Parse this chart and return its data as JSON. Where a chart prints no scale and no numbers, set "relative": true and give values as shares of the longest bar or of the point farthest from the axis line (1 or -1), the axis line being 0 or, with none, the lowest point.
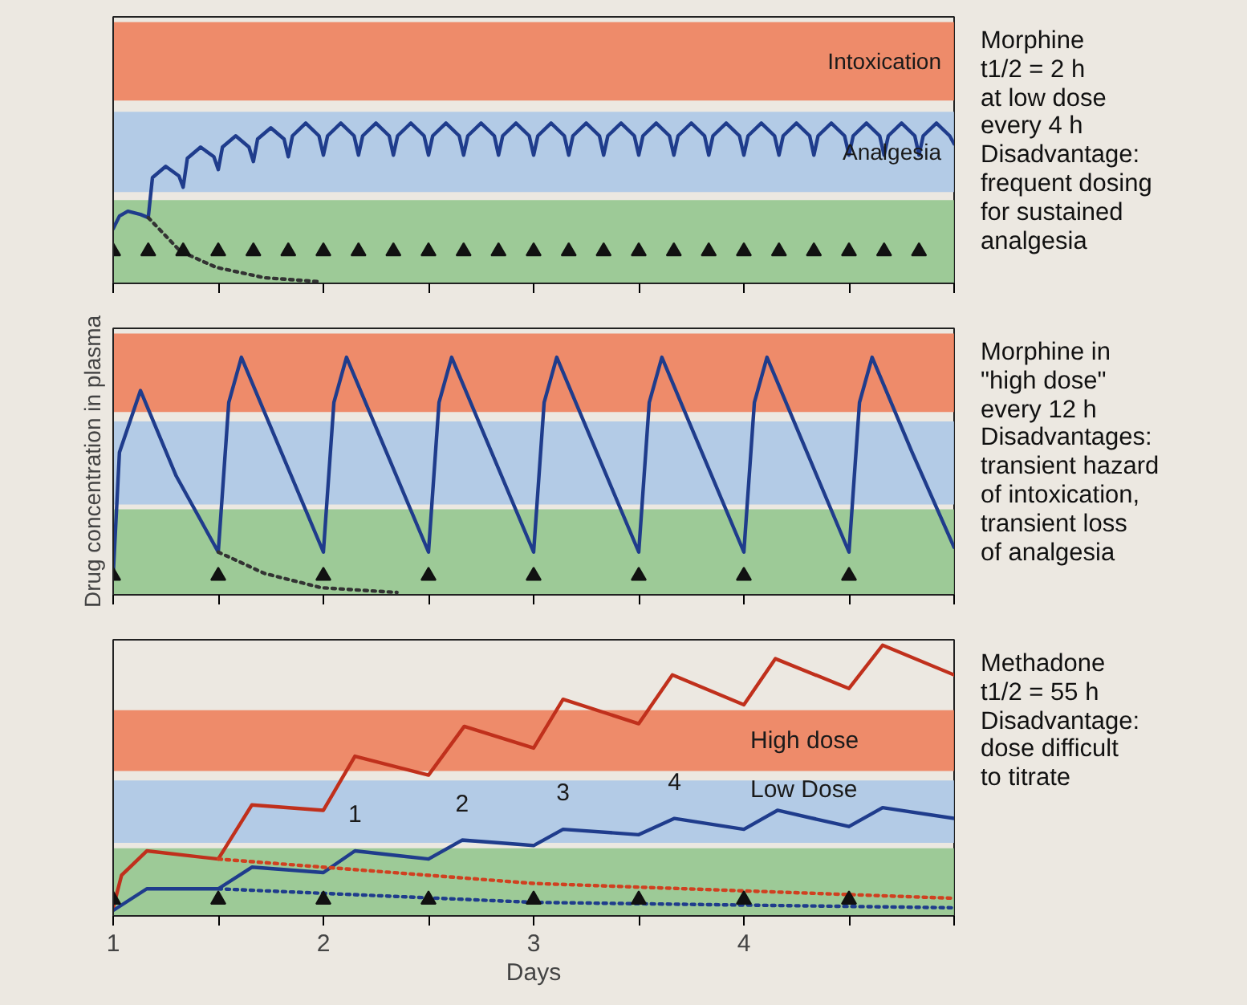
{
  "chart_data": [
    {
      "type": "line",
      "relative": true,
      "xlim": [
        1,
        5
      ],
      "xticks": [
        {
          "value": 1,
          "label": null
        },
        {
          "value": 1.5,
          "label": null
        },
        {
          "value": 2,
          "label": null
        },
        {
          "value": 2.5,
          "label": null
        },
        {
          "value": 3,
          "label": null
        },
        {
          "value": 3.5,
          "label": null
        },
        {
          "value": 4,
          "label": null
        },
        {
          "value": 4.5,
          "label": null
        },
        {
          "value": 5,
          "label": null
        }
      ],
      "tick_labels": false,
      "bands": [
        {
          "axis": "y",
          "from": 1.14,
          "to": 1.63,
          "label": "Intoxication",
          "color": "#ef7a55"
        },
        {
          "axis": "y",
          "from": 0.57,
          "to": 1.07,
          "label": "Analgesia",
          "color": "#a9c6e6"
        },
        {
          "axis": "y",
          "from": 0,
          "to": 0.52,
          "label": null,
          "color": "#8fc48a"
        }
      ],
      "annotations": [
        "Morphine\nt1/2 = 2 h\nat low dose\nevery 4 h\nDisadvantage:\nfrequent dosing\nfor sustained\nanalgesia"
      ],
      "series": [
        {
          "color": "#1f3c8c",
          "x": [
            1,
            1.03,
            1.07,
            1.13,
            1.167,
            1.187,
            1.25,
            1.313,
            1.333,
            1.353,
            1.416,
            1.479,
            1.5,
            1.52,
            1.583,
            1.646,
            1.667,
            1.687,
            1.75,
            1.813,
            1.833,
            1.853,
            1.916,
            1.979,
            2.0,
            2.02,
            2.083,
            2.146,
            2.167,
            2.187,
            2.25,
            2.313,
            2.333,
            2.353,
            2.416,
            2.479,
            2.5,
            2.52,
            2.583,
            2.646,
            2.667,
            2.687,
            2.75,
            2.813,
            2.833,
            2.853,
            2.916,
            2.979,
            3.0,
            3.02,
            3.083,
            3.146,
            3.167,
            3.187,
            3.25,
            3.313,
            3.333,
            3.353,
            3.416,
            3.479,
            3.5,
            3.52,
            3.583,
            3.646,
            3.667,
            3.687,
            3.75,
            3.813,
            3.833,
            3.853,
            3.916,
            3.979,
            4.0,
            4.02,
            4.083,
            4.146,
            4.167,
            4.187,
            4.25,
            4.313,
            4.333,
            4.353,
            4.416,
            4.479,
            4.5,
            4.52,
            4.583,
            4.646,
            4.667,
            4.687,
            4.75,
            4.813,
            4.833,
            4.853,
            4.916,
            4.979,
            5.0
          ],
          "values": [
            0.34,
            0.42,
            0.45,
            0.43,
            0.41,
            0.66,
            0.73,
            0.67,
            0.6,
            0.78,
            0.85,
            0.79,
            0.71,
            0.85,
            0.92,
            0.85,
            0.76,
            0.9,
            0.97,
            0.9,
            0.79,
            0.92,
            1.0,
            0.92,
            0.8,
            0.92,
            1.0,
            0.92,
            0.8,
            0.92,
            1.0,
            0.92,
            0.8,
            0.92,
            1.0,
            0.92,
            0.8,
            0.92,
            1.0,
            0.92,
            0.8,
            0.92,
            1.0,
            0.92,
            0.8,
            0.92,
            1.0,
            0.92,
            0.8,
            0.92,
            1.0,
            0.92,
            0.8,
            0.92,
            1.0,
            0.92,
            0.8,
            0.92,
            1.0,
            0.92,
            0.8,
            0.92,
            1.0,
            0.92,
            0.8,
            0.92,
            1.0,
            0.92,
            0.8,
            0.92,
            1.0,
            0.92,
            0.8,
            0.92,
            1.0,
            0.92,
            0.8,
            0.92,
            1.0,
            0.92,
            0.8,
            0.92,
            1.0,
            0.92,
            0.8,
            0.92,
            1.0,
            0.92,
            0.8,
            0.92,
            1.0,
            0.92,
            0.8,
            0.92,
            1.0,
            0.92,
            0.87
          ]
        },
        {
          "color": "#333333",
          "line_style": "dotted",
          "x": [
            1.167,
            1.32,
            1.49,
            1.72,
            1.99
          ],
          "values": [
            0.41,
            0.2,
            0.1,
            0.035,
            0.01
          ]
        },
        {
          "type": "scatter",
          "marker": "triangle",
          "color": "#111111",
          "x": [
            1,
            1.167,
            1.333,
            1.5,
            1.667,
            1.833,
            2,
            2.167,
            2.333,
            2.5,
            2.667,
            2.833,
            3,
            3.167,
            3.333,
            3.5,
            3.667,
            3.833,
            4,
            4.167,
            4.333,
            4.5,
            4.667,
            4.833
          ],
          "values": [
            0.2,
            0.2,
            0.2,
            0.2,
            0.2,
            0.2,
            0.2,
            0.2,
            0.2,
            0.2,
            0.2,
            0.2,
            0.2,
            0.2,
            0.2,
            0.2,
            0.2,
            0.2,
            0.2,
            0.2,
            0.2,
            0.2,
            0.2,
            0.2
          ]
        }
      ]
    },
    {
      "type": "line",
      "relative": true,
      "xlim": [
        1,
        5
      ],
      "ylabel": "Drug concentration in plasma",
      "xticks": [
        {
          "value": 1,
          "label": null
        },
        {
          "value": 1.5,
          "label": null
        },
        {
          "value": 2,
          "label": null
        },
        {
          "value": 2.5,
          "label": null
        },
        {
          "value": 3,
          "label": null
        },
        {
          "value": 3.5,
          "label": null
        },
        {
          "value": 4,
          "label": null
        },
        {
          "value": 4.5,
          "label": null
        },
        {
          "value": 5,
          "label": null
        }
      ],
      "tick_labels": false,
      "bands": [
        {
          "axis": "y",
          "from": 0.77,
          "to": 1.1,
          "label": null,
          "color": "#ef7a55"
        },
        {
          "axis": "y",
          "from": 0.38,
          "to": 0.73,
          "label": null,
          "color": "#a9c6e6"
        },
        {
          "axis": "y",
          "from": 0,
          "to": 0.36,
          "label": null,
          "color": "#8fc48a"
        }
      ],
      "annotations": [
        "Morphine in\n\"high dose\"\nevery 12 h\nDisadvantages:\ntransient hazard\nof intoxication,\ntransient loss\nof analgesia"
      ],
      "series": [
        {
          "color": "#1f3c8c",
          "x": [
            1,
            1.03,
            1.13,
            1.3,
            1.5,
            1.55,
            1.61,
            1.8,
            2.0,
            2.05,
            2.11,
            2.3,
            2.5,
            2.55,
            2.61,
            2.8,
            3.0,
            3.05,
            3.11,
            3.3,
            3.5,
            3.55,
            3.61,
            3.8,
            4.0,
            4.05,
            4.11,
            4.3,
            4.5,
            4.55,
            4.61,
            4.8,
            5.0
          ],
          "values": [
            0.08,
            0.6,
            0.86,
            0.5,
            0.18,
            0.81,
            1.0,
            0.6,
            0.18,
            0.81,
            1.0,
            0.6,
            0.18,
            0.81,
            1.0,
            0.6,
            0.18,
            0.81,
            1.0,
            0.6,
            0.18,
            0.81,
            1.0,
            0.6,
            0.18,
            0.81,
            1.0,
            0.6,
            0.18,
            0.81,
            1.0,
            0.6,
            0.2
          ]
        },
        {
          "color": "#333333",
          "line_style": "dotted",
          "x": [
            1.5,
            1.72,
            1.99,
            2.35
          ],
          "values": [
            0.18,
            0.09,
            0.03,
            0.01
          ]
        },
        {
          "type": "scatter",
          "marker": "triangle",
          "color": "#111111",
          "x": [
            1,
            1.5,
            2,
            2.5,
            3,
            3.5,
            4,
            4.5
          ],
          "values": [
            0.08,
            0.08,
            0.08,
            0.08,
            0.08,
            0.08,
            0.08,
            0.08
          ]
        }
      ]
    },
    {
      "type": "line",
      "relative": true,
      "xlim": [
        1,
        5
      ],
      "xlabel": "Days",
      "xticks": [
        1,
        {
          "value": 1.5,
          "label": null
        },
        2,
        {
          "value": 2.5,
          "label": null
        },
        3,
        {
          "value": 3.5,
          "label": null
        },
        4,
        {
          "value": 4.5,
          "label": null
        },
        {
          "value": 5,
          "label": null
        }
      ],
      "tick_labels": "x",
      "bands": [
        {
          "axis": "y",
          "from": 0.535,
          "to": 0.76,
          "label": null,
          "color": "#ef7a55"
        },
        {
          "axis": "y",
          "from": 0.27,
          "to": 0.5,
          "label": null,
          "color": "#a9c6e6"
        },
        {
          "axis": "y",
          "from": 0,
          "to": 0.25,
          "label": null,
          "color": "#8fc48a"
        }
      ],
      "annotations": [
        "Methadone\nt1/2 = 55 h\nDisadvantage:\ndose difficult\nto titrate",
        {
          "text": "1",
          "x": 2.15,
          "y": 0.24
        },
        {
          "text": "2",
          "x": 2.66,
          "y": 0.28
        },
        {
          "text": "3",
          "x": 3.14,
          "y": 0.32
        },
        {
          "text": "4",
          "x": 3.67,
          "y": 0.36
        }
      ],
      "series": [
        {
          "name": "High dose",
          "color": "#c0301c",
          "x": [
            1,
            1.04,
            1.16,
            1.5,
            1.66,
            2.0,
            2.15,
            2.5,
            2.67,
            3.0,
            3.14,
            3.5,
            3.66,
            4.0,
            4.15,
            4.5,
            4.66,
            5.0
          ],
          "values": [
            0.03,
            0.15,
            0.24,
            0.21,
            0.41,
            0.39,
            0.59,
            0.52,
            0.7,
            0.62,
            0.8,
            0.71,
            0.89,
            0.78,
            0.95,
            0.84,
            1.0,
            0.89
          ]
        },
        {
          "name": "Low Dose",
          "color": "#1f3c8c",
          "x": [
            1,
            1.16,
            1.5,
            1.66,
            2.0,
            2.15,
            2.5,
            2.66,
            3.0,
            3.14,
            3.5,
            3.67,
            4.0,
            4.16,
            4.5,
            4.66,
            5.0
          ],
          "values": [
            0.02,
            0.1,
            0.1,
            0.18,
            0.16,
            0.24,
            0.21,
            0.28,
            0.26,
            0.32,
            0.3,
            0.36,
            0.32,
            0.39,
            0.33,
            0.4,
            0.36
          ]
        },
        {
          "color": "#d04020",
          "line_style": "dotted",
          "x": [
            1.5,
            3,
            5
          ],
          "values": [
            0.21,
            0.12,
            0.065
          ]
        },
        {
          "color": "#1f3c8c",
          "line_style": "dotted",
          "x": [
            1.5,
            3,
            5
          ],
          "values": [
            0.1,
            0.05,
            0.03
          ]
        },
        {
          "type": "scatter",
          "marker": "triangle",
          "color": "#111111",
          "x": [
            1,
            1.5,
            2,
            2.5,
            3,
            3.5,
            4,
            4.5
          ],
          "values": [
            0.06,
            0.06,
            0.06,
            0.06,
            0.06,
            0.06,
            0.06,
            0.06
          ]
        }
      ]
    }
  ]
}
